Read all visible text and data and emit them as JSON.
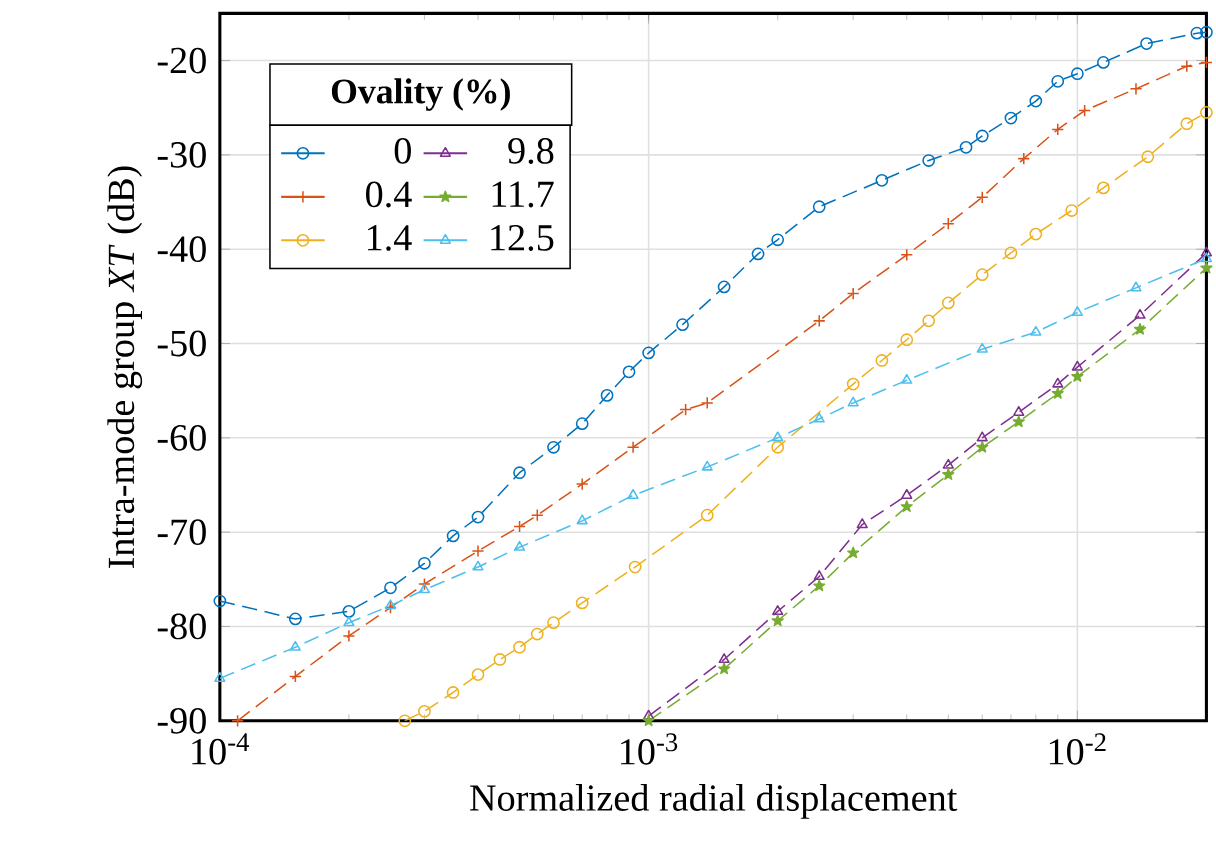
{
  "chart_data": {
    "type": "line",
    "xlabel": "Normalized radial displacement",
    "ylabel": "Intra-mode group *XT* (dB)",
    "legend_title": "Ovality (%)",
    "legend": "top left",
    "log": "x",
    "grid": true,
    "line_style": "dashed",
    "xlim": [
      0.0001,
      0.02
    ],
    "ylim": [
      -90,
      -15
    ],
    "xticks": [
      {
        "value": 0.0001,
        "label": "10$^{-4}$"
      },
      {
        "value": 0.001,
        "label": "10$^{-3}$"
      },
      {
        "value": 0.01,
        "label": "10$^{-2}$"
      }
    ],
    "yticks": [
      -90,
      -80,
      -70,
      -60,
      -50,
      -40,
      -30,
      -20
    ],
    "series": [
      {
        "name": "0",
        "color": "#0072bd",
        "marker": "circle",
        "x": [
          0.0001,
          0.00015,
          0.0002,
          0.00025,
          0.0003,
          0.00035,
          0.0004,
          0.0005,
          0.0006,
          0.0007,
          0.0008,
          0.0009,
          0.001,
          0.0012,
          0.0015,
          0.0018,
          0.002,
          0.0025,
          0.0035,
          0.0045,
          0.0055,
          0.006,
          0.007,
          0.008,
          0.009,
          0.01,
          0.0115,
          0.0145,
          0.019,
          0.02
        ],
        "values": [
          -77.3,
          -79.2,
          -78.4,
          -75.9,
          -73.3,
          -70.4,
          -68.4,
          -63.7,
          -61,
          -58.5,
          -55.5,
          -53,
          -51,
          -48,
          -44,
          -40.5,
          -39,
          -35.5,
          -32.7,
          -30.6,
          -29.2,
          -28,
          -26.1,
          -24.3,
          -22.2,
          -21.4,
          -20.2,
          -18.2,
          -17.1,
          -17
        ]
      },
      {
        "name": "0.4",
        "color": "#d95319",
        "marker": "cross",
        "x": [
          0.00011,
          0.00015,
          0.0002,
          0.00025,
          0.0003,
          0.0004,
          0.0005,
          0.00055,
          0.0007,
          0.00092,
          0.00122,
          0.00137,
          0.0025,
          0.003,
          0.004,
          0.005,
          0.006,
          0.0075,
          0.009,
          0.0104,
          0.0137,
          0.018,
          0.02
        ],
        "values": [
          -90,
          -85.3,
          -81,
          -78,
          -75.5,
          -72,
          -69.4,
          -68.2,
          -64.9,
          -61,
          -57,
          -56.3,
          -47.6,
          -44.7,
          -40.6,
          -37.3,
          -34.5,
          -30.4,
          -27.3,
          -25.3,
          -23,
          -20.6,
          -20.2
        ]
      },
      {
        "name": "1.4",
        "color": "#edb120",
        "marker": "circle",
        "x": [
          0.00027,
          0.0003,
          0.00035,
          0.0004,
          0.00045,
          0.0005,
          0.00055,
          0.0006,
          0.0007,
          0.00093,
          0.00137,
          0.002,
          0.003,
          0.0035,
          0.004,
          0.0045,
          0.005,
          0.006,
          0.007,
          0.008,
          0.0097,
          0.0115,
          0.0146,
          0.018,
          0.02
        ],
        "values": [
          -90,
          -89,
          -87,
          -85.1,
          -83.5,
          -82.2,
          -80.8,
          -79.6,
          -77.5,
          -73.7,
          -68.2,
          -61,
          -54.3,
          -51.8,
          -49.6,
          -47.6,
          -45.7,
          -42.7,
          -40.4,
          -38.4,
          -35.9,
          -33.5,
          -30.2,
          -26.7,
          -25.5
        ]
      },
      {
        "name": "9.8",
        "color": "#7e2f8e",
        "marker": "triangle",
        "x": [
          0.001,
          0.0015,
          0.002,
          0.0025,
          0.00315,
          0.004,
          0.005,
          0.006,
          0.0073,
          0.009,
          0.01,
          0.014,
          0.02
        ],
        "values": [
          -89.5,
          -83.5,
          -78.4,
          -74.7,
          -69.2,
          -66.1,
          -62.9,
          -60,
          -57.3,
          -54.3,
          -52.5,
          -47,
          -40.4
        ]
      },
      {
        "name": "11.7",
        "color": "#77ac30",
        "marker": "star",
        "x": [
          0.001,
          0.0015,
          0.002,
          0.0025,
          0.003,
          0.004,
          0.005,
          0.006,
          0.0073,
          0.009,
          0.01,
          0.014,
          0.02
        ],
        "values": [
          -90,
          -84.5,
          -79.4,
          -75.7,
          -72.2,
          -67.3,
          -63.9,
          -61,
          -58.3,
          -55.3,
          -53.5,
          -48.5,
          -42
        ]
      },
      {
        "name": "12.5",
        "color": "#4dbeee",
        "marker": "triangle",
        "x": [
          0.0001,
          0.00015,
          0.0002,
          0.00025,
          0.0003,
          0.0004,
          0.0005,
          0.0007,
          0.00092,
          0.00137,
          0.002,
          0.0025,
          0.003,
          0.004,
          0.006,
          0.008,
          0.01,
          0.0137,
          0.02
        ],
        "values": [
          -85.5,
          -82.2,
          -79.6,
          -77.8,
          -76.1,
          -73.7,
          -71.6,
          -68.8,
          -66.1,
          -63.1,
          -60,
          -58,
          -56.3,
          -53.9,
          -50.6,
          -48.8,
          -46.7,
          -44.1,
          -41
        ]
      }
    ]
  }
}
